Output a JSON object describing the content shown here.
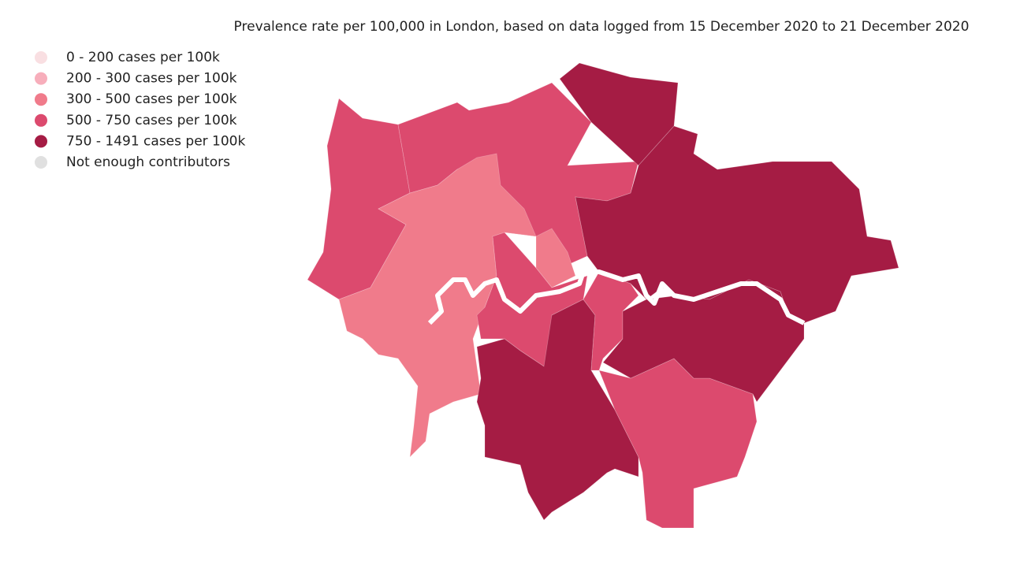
{
  "title": "Prevalence rate per 100,000 in London, based on data logged from 15 December 2020 to 21 December 2020",
  "legend": [
    {
      "label": "0 - 200 cases per 100k",
      "color": "#f9dfe2"
    },
    {
      "label": "200 - 300 cases per 100k",
      "color": "#f7aebb"
    },
    {
      "label": "300 - 500 cases per 100k",
      "color": "#f07b8b"
    },
    {
      "label": "500 - 750 cases per 100k",
      "color": "#dc4a6e"
    },
    {
      "label": "750 - 1491 cases per 100k",
      "color": "#a51c44"
    },
    {
      "label": "Not enough contributors",
      "color": "#e0e0e0"
    }
  ]
}
